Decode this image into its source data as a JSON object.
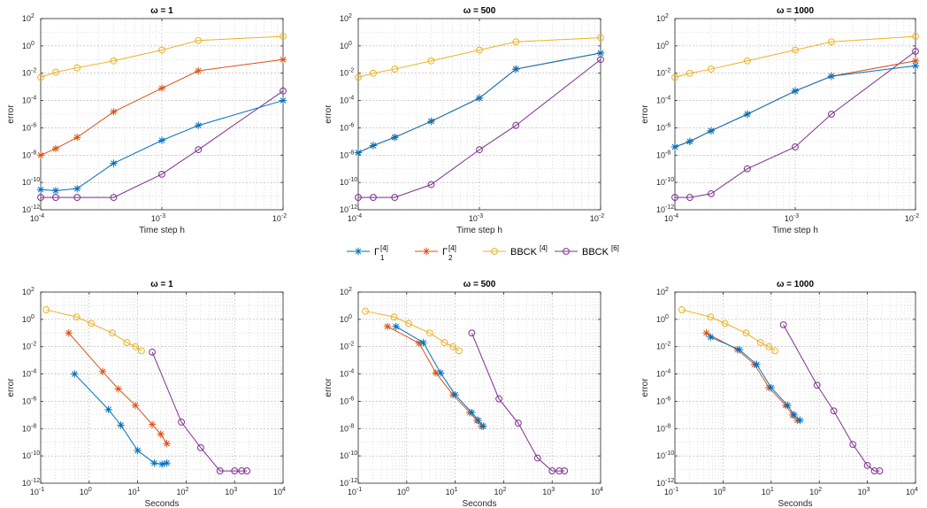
{
  "colors": {
    "gamma1": "#0072BD",
    "gamma2": "#D95319",
    "bbck4": "#EDB120",
    "bbck6": "#7E2F8E",
    "axis": "#262626",
    "grid": "#b0b0b0"
  },
  "legend": {
    "items": [
      {
        "key": "gamma1",
        "base": "Γ",
        "sup": "[4]",
        "sub": "1",
        "marker": "star"
      },
      {
        "key": "gamma2",
        "base": "Γ",
        "sup": "[4]",
        "sub": "2",
        "marker": "star"
      },
      {
        "key": "bbck4",
        "base": "BBCK",
        "sup": "[4]",
        "sub": "",
        "marker": "circle"
      },
      {
        "key": "bbck6",
        "base": "BBCK",
        "sup": "[6]",
        "sub": "",
        "marker": "circle"
      }
    ]
  },
  "chart_data": [
    {
      "type": "line",
      "title": "ω = 1",
      "xlabel": "Time step h",
      "ylabel": "error",
      "xscale": "log",
      "yscale": "log",
      "xlim": [
        0.0001,
        0.01
      ],
      "ylim": [
        1e-12,
        100
      ],
      "grid": true,
      "xticks": [
        {
          "b": "10",
          "e": "-4"
        },
        {
          "b": "10",
          "e": "-3"
        },
        {
          "b": "10",
          "e": "-2"
        }
      ],
      "yticks": [
        {
          "b": "10",
          "e": "-12"
        },
        {
          "b": "10",
          "e": "-10"
        },
        {
          "b": "10",
          "e": "-8"
        },
        {
          "b": "10",
          "e": "-6"
        },
        {
          "b": "10",
          "e": "-4"
        },
        {
          "b": "10",
          "e": "-2"
        },
        {
          "b": "10",
          "e": "0"
        },
        {
          "b": "10",
          "e": "2"
        }
      ],
      "series": [
        {
          "name": "gamma1",
          "x": [
            0.0001,
            0.000133,
            0.0002,
            0.0004,
            0.001,
            0.002,
            0.01
          ],
          "y": [
            3e-11,
            2.5e-11,
            3.5e-11,
            2.5e-09,
            1.2e-07,
            1.5e-06,
            0.0001
          ]
        },
        {
          "name": "gamma2",
          "x": [
            0.0001,
            0.000133,
            0.0002,
            0.0004,
            0.001,
            0.002,
            0.01
          ],
          "y": [
            1e-08,
            3e-08,
            2e-07,
            1.5e-05,
            0.0008,
            0.015,
            0.1
          ]
        },
        {
          "name": "bbck4",
          "x": [
            0.0001,
            0.000133,
            0.0002,
            0.0004,
            0.001,
            0.002,
            0.01
          ],
          "y": [
            0.005,
            0.012,
            0.025,
            0.08,
            0.5,
            2.5,
            5
          ]
        },
        {
          "name": "bbck6",
          "x": [
            0.0001,
            0.000133,
            0.0002,
            0.0004,
            0.001,
            0.002,
            0.01
          ],
          "y": [
            8e-12,
            8e-12,
            8e-12,
            8e-12,
            4e-10,
            2.5e-08,
            0.0005
          ]
        }
      ]
    },
    {
      "type": "line",
      "title": "ω = 500",
      "xlabel": "Time step h",
      "ylabel": "error",
      "xscale": "log",
      "yscale": "log",
      "xlim": [
        0.0001,
        0.01
      ],
      "ylim": [
        1e-12,
        100
      ],
      "grid": true,
      "xticks": [
        {
          "b": "10",
          "e": "-4"
        },
        {
          "b": "10",
          "e": "-3"
        },
        {
          "b": "10",
          "e": "-2"
        }
      ],
      "yticks": [
        {
          "b": "10",
          "e": "-12"
        },
        {
          "b": "10",
          "e": "-10"
        },
        {
          "b": "10",
          "e": "-8"
        },
        {
          "b": "10",
          "e": "-6"
        },
        {
          "b": "10",
          "e": "-4"
        },
        {
          "b": "10",
          "e": "-2"
        },
        {
          "b": "10",
          "e": "0"
        },
        {
          "b": "10",
          "e": "2"
        }
      ],
      "series": [
        {
          "name": "gamma1",
          "x": [
            0.0001,
            0.000133,
            0.0002,
            0.0004,
            0.001,
            0.002,
            0.01
          ],
          "y": [
            1.5e-08,
            5e-08,
            2e-07,
            3e-06,
            0.00015,
            0.02,
            0.3
          ]
        },
        {
          "name": "gamma2",
          "x": [
            0.0001,
            0.000133,
            0.0002,
            0.0004,
            0.001,
            0.002,
            0.01
          ],
          "y": [
            1.5e-08,
            5e-08,
            2e-07,
            3e-06,
            0.00015,
            0.02,
            0.3
          ]
        },
        {
          "name": "bbck4",
          "x": [
            0.0001,
            0.000133,
            0.0002,
            0.0004,
            0.001,
            0.002,
            0.01
          ],
          "y": [
            0.005,
            0.01,
            0.02,
            0.08,
            0.5,
            2,
            4
          ]
        },
        {
          "name": "bbck6",
          "x": [
            0.0001,
            0.000133,
            0.0002,
            0.0004,
            0.001,
            0.002,
            0.01
          ],
          "y": [
            8e-12,
            8e-12,
            8e-12,
            7e-11,
            2.5e-08,
            1.5e-06,
            0.1
          ]
        }
      ]
    },
    {
      "type": "line",
      "title": "ω = 1000",
      "xlabel": "Time step h",
      "ylabel": "error",
      "xscale": "log",
      "yscale": "log",
      "xlim": [
        0.0001,
        0.01
      ],
      "ylim": [
        1e-12,
        100
      ],
      "grid": true,
      "xticks": [
        {
          "b": "10",
          "e": "-4"
        },
        {
          "b": "10",
          "e": "-3"
        },
        {
          "b": "10",
          "e": "-2"
        }
      ],
      "yticks": [
        {
          "b": "10",
          "e": "-12"
        },
        {
          "b": "10",
          "e": "-10"
        },
        {
          "b": "10",
          "e": "-8"
        },
        {
          "b": "10",
          "e": "-6"
        },
        {
          "b": "10",
          "e": "-4"
        },
        {
          "b": "10",
          "e": "-2"
        },
        {
          "b": "10",
          "e": "0"
        },
        {
          "b": "10",
          "e": "2"
        }
      ],
      "series": [
        {
          "name": "gamma1",
          "x": [
            0.0001,
            0.000133,
            0.0002,
            0.0004,
            0.001,
            0.002,
            0.01
          ],
          "y": [
            4e-08,
            1e-07,
            6e-07,
            1e-05,
            0.0005,
            0.006,
            0.035
          ]
        },
        {
          "name": "gamma2",
          "x": [
            0.0001,
            0.000133,
            0.0002,
            0.0004,
            0.001,
            0.002,
            0.01
          ],
          "y": [
            4e-08,
            1e-07,
            6e-07,
            1e-05,
            0.0005,
            0.006,
            0.08
          ]
        },
        {
          "name": "bbck4",
          "x": [
            0.0001,
            0.000133,
            0.0002,
            0.0004,
            0.001,
            0.002,
            0.01
          ],
          "y": [
            0.005,
            0.01,
            0.02,
            0.08,
            0.5,
            2,
            5
          ]
        },
        {
          "name": "bbck6",
          "x": [
            0.0001,
            0.000133,
            0.0002,
            0.0004,
            0.001,
            0.002,
            0.01
          ],
          "y": [
            8e-12,
            8e-12,
            1.5e-11,
            1e-09,
            4e-08,
            1e-05,
            0.4
          ]
        }
      ]
    },
    {
      "type": "line",
      "title": "ω = 1",
      "xlabel": "Seconds",
      "ylabel": "error",
      "xscale": "log",
      "yscale": "log",
      "xlim": [
        0.1,
        10000
      ],
      "ylim": [
        1e-12,
        100
      ],
      "grid": true,
      "xticks": [
        {
          "b": "10",
          "e": "-1"
        },
        {
          "b": "10",
          "e": "0"
        },
        {
          "b": "10",
          "e": "1"
        },
        {
          "b": "10",
          "e": "2"
        },
        {
          "b": "10",
          "e": "3"
        },
        {
          "b": "10",
          "e": "4"
        }
      ],
      "yticks": [
        {
          "b": "10",
          "e": "-12"
        },
        {
          "b": "10",
          "e": "-10"
        },
        {
          "b": "10",
          "e": "-8"
        },
        {
          "b": "10",
          "e": "-6"
        },
        {
          "b": "10",
          "e": "-4"
        },
        {
          "b": "10",
          "e": "-2"
        },
        {
          "b": "10",
          "e": "0"
        },
        {
          "b": "10",
          "e": "2"
        }
      ],
      "series": [
        {
          "name": "gamma1",
          "x": [
            0.5,
            2.5,
            4.5,
            10,
            22,
            32,
            40
          ],
          "y": [
            0.0001,
            2.5e-07,
            1.8e-08,
            2.5e-10,
            3e-11,
            2.5e-11,
            3e-11
          ]
        },
        {
          "name": "gamma2",
          "x": [
            0.38,
            1.9,
            4,
            9,
            20,
            30,
            40
          ],
          "y": [
            0.1,
            0.00015,
            8e-06,
            5e-07,
            2e-08,
            4e-09,
            8e-10
          ]
        },
        {
          "name": "bbck4",
          "x": [
            0.13,
            0.55,
            1.1,
            3,
            6,
            9,
            12
          ],
          "y": [
            5,
            1.5,
            0.5,
            0.1,
            0.02,
            0.01,
            0.005
          ]
        },
        {
          "name": "bbck6",
          "x": [
            20,
            80,
            200,
            500,
            1000,
            1400,
            1800
          ],
          "y": [
            0.004,
            3e-08,
            4e-10,
            8e-12,
            8e-12,
            8e-12,
            8e-12
          ]
        }
      ]
    },
    {
      "type": "line",
      "title": "ω = 500",
      "xlabel": "Seconds",
      "ylabel": "error",
      "xscale": "log",
      "yscale": "log",
      "xlim": [
        0.1,
        10000
      ],
      "ylim": [
        1e-12,
        100
      ],
      "grid": true,
      "xticks": [
        {
          "b": "10",
          "e": "-1"
        },
        {
          "b": "10",
          "e": "0"
        },
        {
          "b": "10",
          "e": "1"
        },
        {
          "b": "10",
          "e": "2"
        },
        {
          "b": "10",
          "e": "3"
        },
        {
          "b": "10",
          "e": "4"
        }
      ],
      "yticks": [
        {
          "b": "10",
          "e": "-12"
        },
        {
          "b": "10",
          "e": "-10"
        },
        {
          "b": "10",
          "e": "-8"
        },
        {
          "b": "10",
          "e": "-6"
        },
        {
          "b": "10",
          "e": "-4"
        },
        {
          "b": "10",
          "e": "-2"
        },
        {
          "b": "10",
          "e": "0"
        },
        {
          "b": "10",
          "e": "2"
        }
      ],
      "series": [
        {
          "name": "gamma1",
          "x": [
            0.6,
            2.2,
            5,
            10,
            22,
            30,
            38
          ],
          "y": [
            0.3,
            0.02,
            0.00012,
            3e-06,
            1.5e-07,
            4e-08,
            1.5e-08
          ]
        },
        {
          "name": "gamma2",
          "x": [
            0.4,
            1.8,
            4,
            9,
            20,
            28,
            35
          ],
          "y": [
            0.3,
            0.018,
            0.00012,
            3e-06,
            1.5e-07,
            4e-08,
            1.5e-08
          ]
        },
        {
          "name": "bbck4",
          "x": [
            0.14,
            0.55,
            1.1,
            3,
            6,
            9,
            12
          ],
          "y": [
            4,
            1.5,
            0.5,
            0.1,
            0.02,
            0.01,
            0.005
          ]
        },
        {
          "name": "bbck6",
          "x": [
            22,
            80,
            200,
            500,
            1000,
            1400,
            1800
          ],
          "y": [
            0.1,
            1.5e-06,
            2.5e-08,
            7e-11,
            8e-12,
            8e-12,
            8e-12
          ]
        }
      ]
    },
    {
      "type": "line",
      "title": "ω = 1000",
      "xlabel": "Seconds",
      "ylabel": "error",
      "xscale": "log",
      "yscale": "log",
      "xlim": [
        0.1,
        10000
      ],
      "ylim": [
        1e-12,
        100
      ],
      "grid": true,
      "xticks": [
        {
          "b": "10",
          "e": "-1"
        },
        {
          "b": "10",
          "e": "0"
        },
        {
          "b": "10",
          "e": "1"
        },
        {
          "b": "10",
          "e": "2"
        },
        {
          "b": "10",
          "e": "3"
        },
        {
          "b": "10",
          "e": "4"
        }
      ],
      "yticks": [
        {
          "b": "10",
          "e": "-12"
        },
        {
          "b": "10",
          "e": "-10"
        },
        {
          "b": "10",
          "e": "-8"
        },
        {
          "b": "10",
          "e": "-6"
        },
        {
          "b": "10",
          "e": "-4"
        },
        {
          "b": "10",
          "e": "-2"
        },
        {
          "b": "10",
          "e": "0"
        },
        {
          "b": "10",
          "e": "2"
        }
      ],
      "series": [
        {
          "name": "gamma1",
          "x": [
            0.55,
            2.2,
            5,
            10,
            22,
            30,
            40
          ],
          "y": [
            0.05,
            0.006,
            0.0005,
            1e-05,
            5e-07,
            1e-07,
            4e-08
          ]
        },
        {
          "name": "gamma2",
          "x": [
            0.45,
            2,
            4.5,
            9,
            20,
            28,
            35
          ],
          "y": [
            0.1,
            0.006,
            0.0005,
            1e-05,
            5e-07,
            1e-07,
            4e-08
          ]
        },
        {
          "name": "bbck4",
          "x": [
            0.14,
            0.55,
            1.1,
            3,
            6,
            9,
            12
          ],
          "y": [
            5,
            1.5,
            0.5,
            0.1,
            0.02,
            0.01,
            0.005
          ]
        },
        {
          "name": "bbck6",
          "x": [
            18,
            90,
            200,
            500,
            1000,
            1400,
            1800
          ],
          "y": [
            0.4,
            1.5e-05,
            2e-07,
            7e-10,
            2e-11,
            8e-12,
            8e-12
          ]
        }
      ]
    }
  ]
}
